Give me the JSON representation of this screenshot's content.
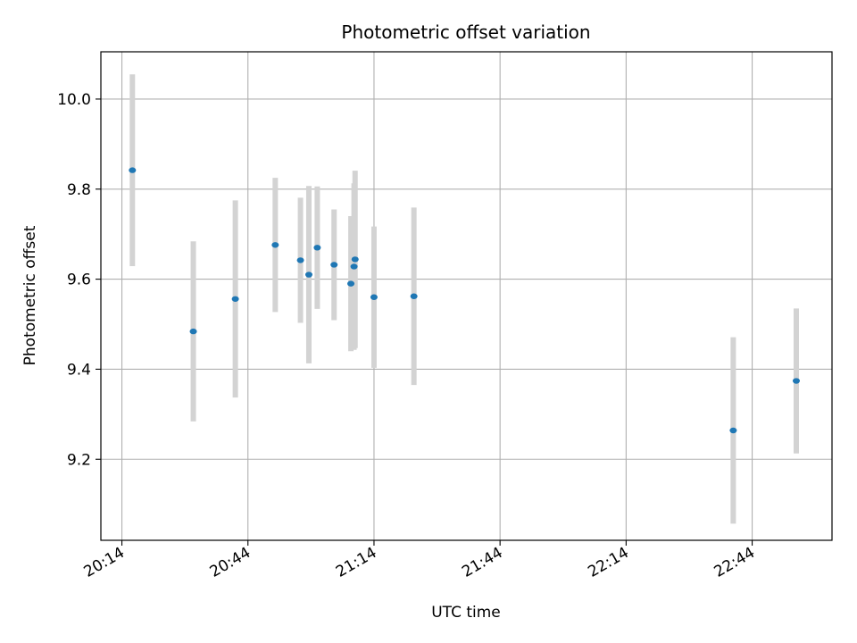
{
  "chart_data": {
    "type": "scatter",
    "title": "Photometric offset variation",
    "xlabel": "UTC time",
    "ylabel": "Photometric offset",
    "x_axis_kind": "time",
    "xlim": [
      "20:09",
      "23:03"
    ],
    "ylim": [
      9.02,
      10.105
    ],
    "x_ticks": [
      "20:14",
      "20:44",
      "21:14",
      "21:44",
      "22:14",
      "22:44"
    ],
    "y_ticks": [
      9.2,
      9.4,
      9.6,
      9.8,
      10.0
    ],
    "y_tick_labels": [
      "9.2",
      "9.4",
      "9.6",
      "9.8",
      "10.0"
    ],
    "grid": true,
    "marker_color": "#1f77b4",
    "errorbar_color": "#d3d3d3",
    "points": [
      {
        "x": "20:16:30",
        "y": 9.842,
        "err": 0.213
      },
      {
        "x": "20:31:00",
        "y": 9.484,
        "err": 0.2
      },
      {
        "x": "20:41:00",
        "y": 9.556,
        "err": 0.219
      },
      {
        "x": "20:50:30",
        "y": 9.676,
        "err": 0.149
      },
      {
        "x": "20:56:30",
        "y": 9.642,
        "err": 0.139
      },
      {
        "x": "20:58:30",
        "y": 9.61,
        "err": 0.197
      },
      {
        "x": "21:00:30",
        "y": 9.67,
        "err": 0.136
      },
      {
        "x": "21:04:30",
        "y": 9.632,
        "err": 0.123
      },
      {
        "x": "21:08:30",
        "y": 9.59,
        "err": 0.15
      },
      {
        "x": "21:09:15",
        "y": 9.628,
        "err": 0.185
      },
      {
        "x": "21:09:30",
        "y": 9.644,
        "err": 0.197
      },
      {
        "x": "21:14:00",
        "y": 9.56,
        "err": 0.157
      },
      {
        "x": "21:23:30",
        "y": 9.562,
        "err": 0.197
      },
      {
        "x": "22:39:30",
        "y": 9.264,
        "err": 0.207
      },
      {
        "x": "22:54:30",
        "y": 9.374,
        "err": 0.161
      }
    ]
  }
}
